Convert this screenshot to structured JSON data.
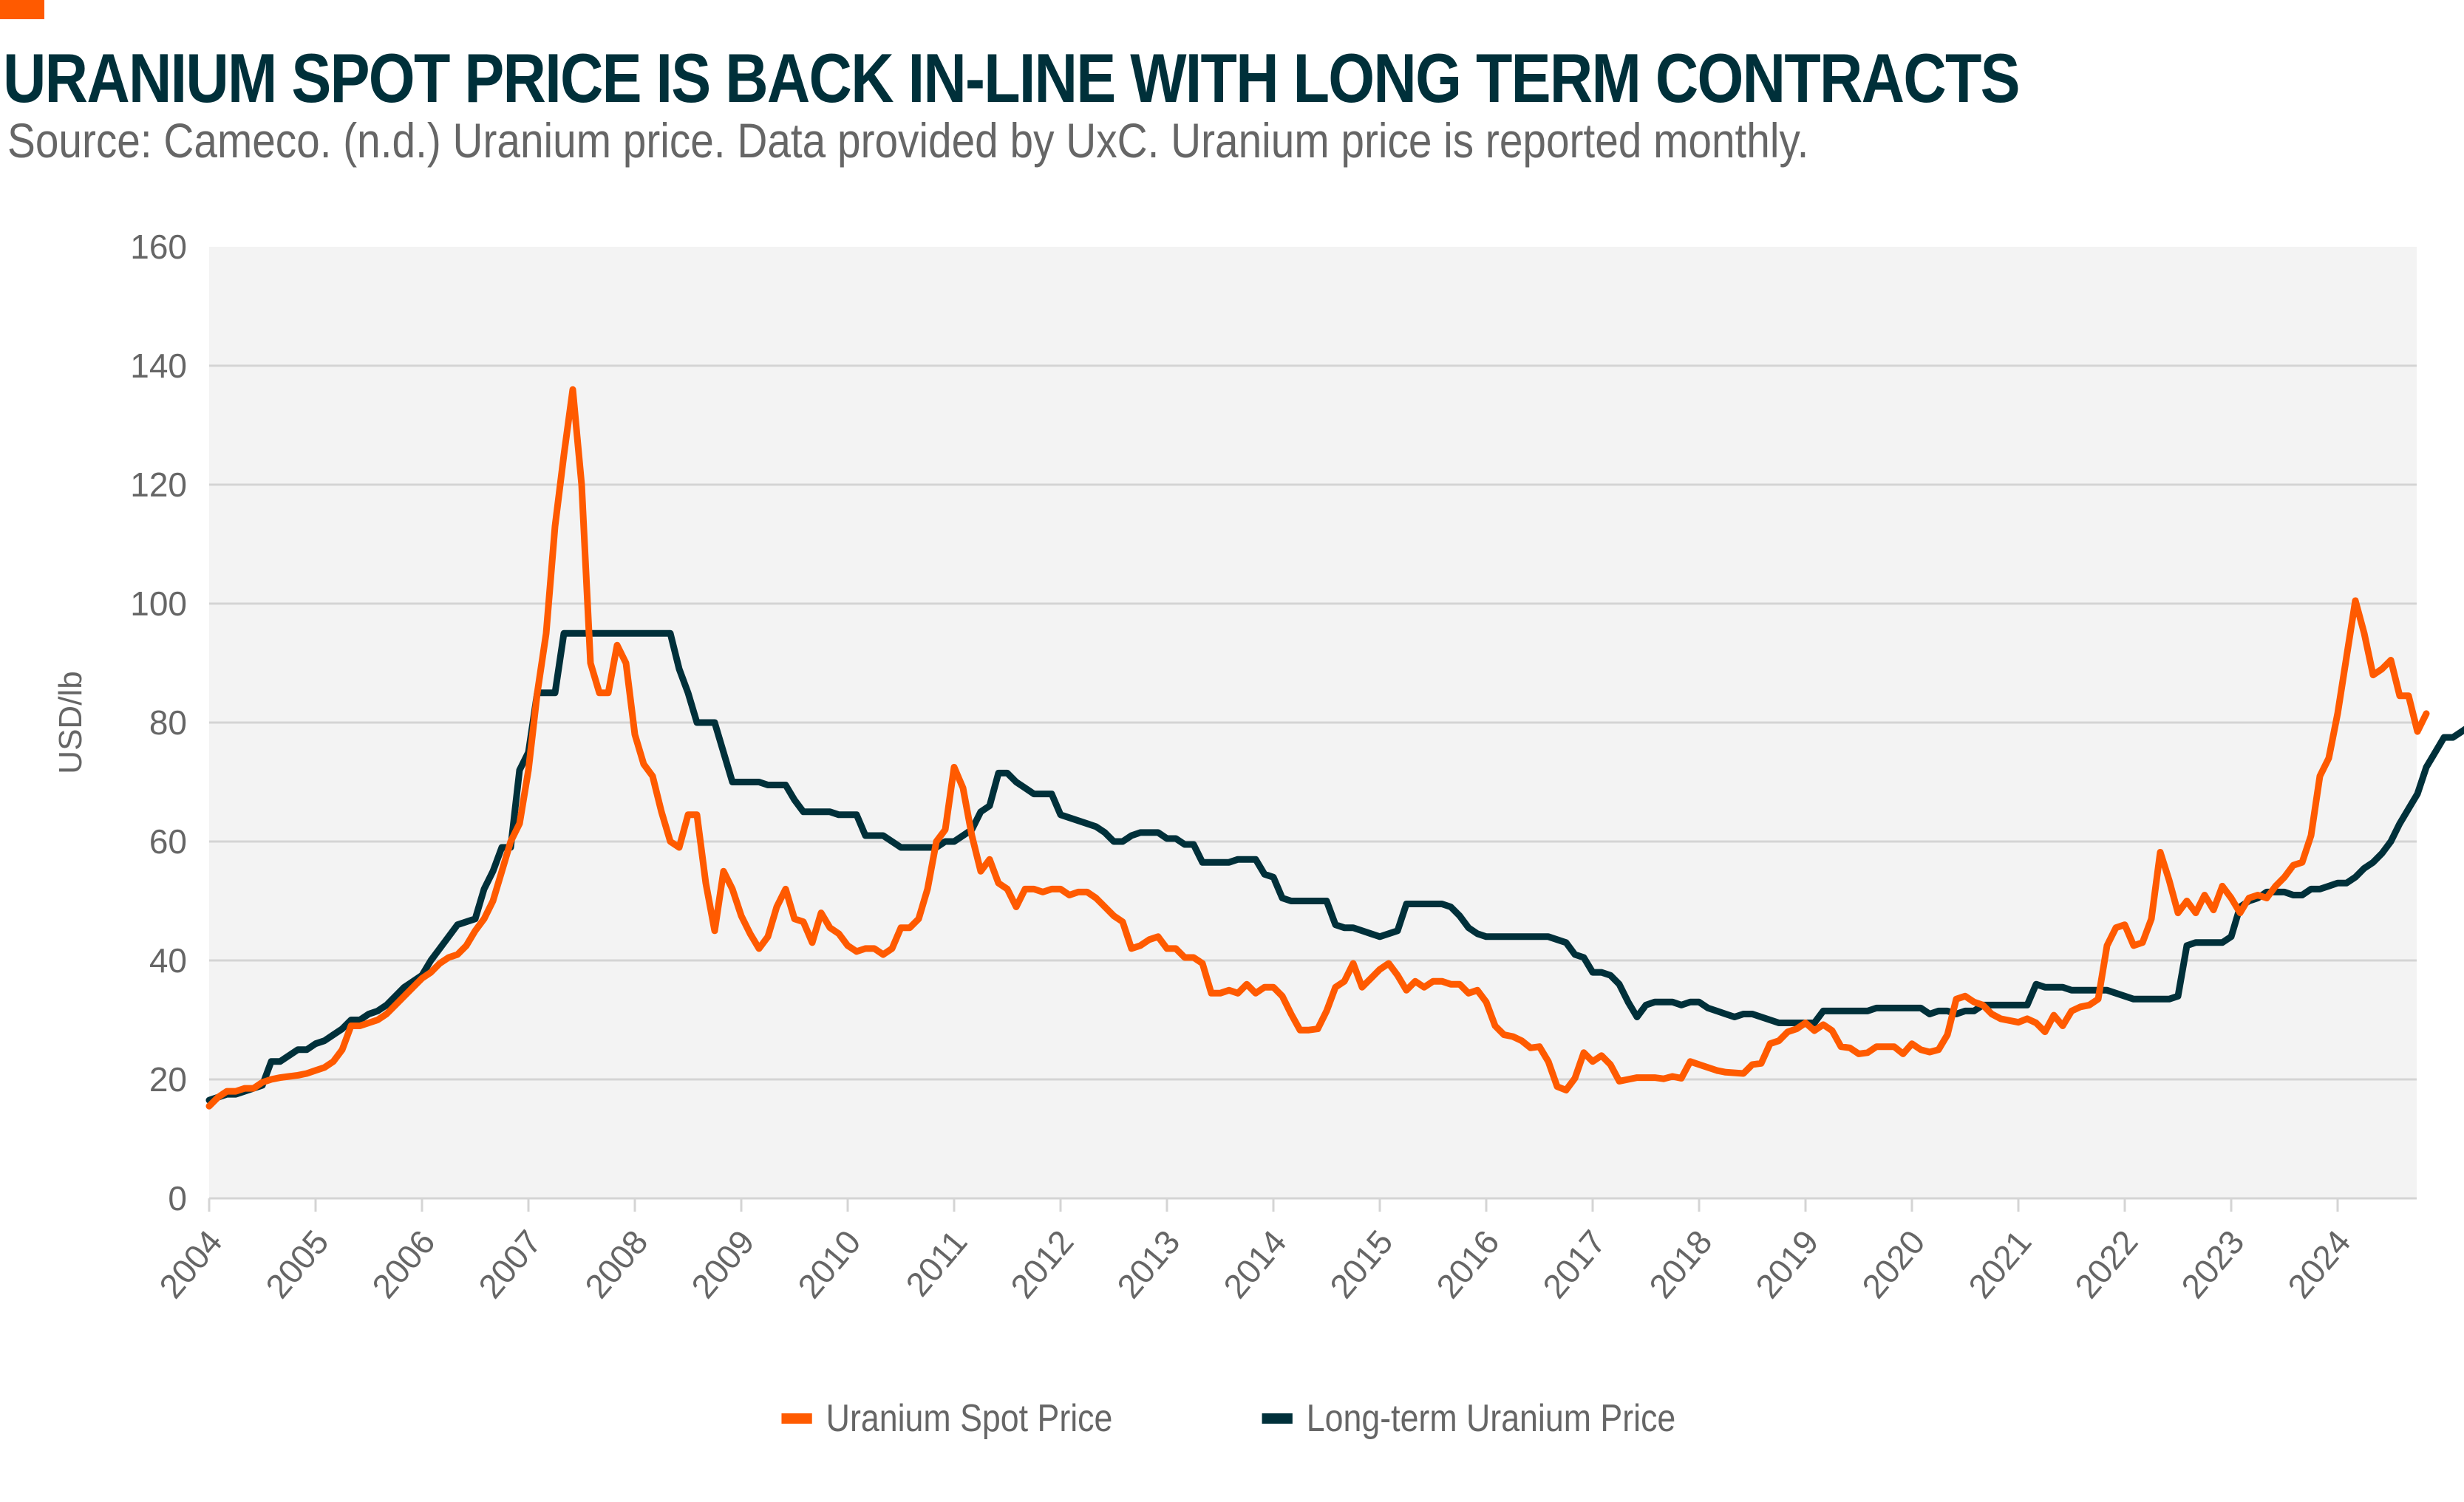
{
  "header": {
    "title": "URANIUM SPOT PRICE IS BACK IN-LINE WITH LONG TERM CONTRACTS",
    "subtitle": "Source: Cameco. (n.d.) Uranium price. Data provided by UxC. Uranium price is reported monthly.",
    "accent_color": "#ff5a00"
  },
  "chart_data": {
    "type": "line",
    "title": "URANIUM SPOT PRICE IS BACK IN-LINE WITH LONG TERM CONTRACTS",
    "xlabel": "",
    "ylabel": "USD/lb",
    "ylim": [
      0,
      160
    ],
    "yticks": [
      "0",
      "20",
      "40",
      "60",
      "80",
      "100",
      "120",
      "140",
      "160"
    ],
    "xticks": [
      "2004",
      "2005",
      "2006",
      "2007",
      "2008",
      "2009",
      "2010",
      "2011",
      "2012",
      "2013",
      "2014",
      "2015",
      "2016",
      "2017",
      "2018",
      "2019",
      "2020",
      "2021",
      "2022",
      "2023",
      "2024"
    ],
    "x_start": "2004-01",
    "x_frequency": "monthly",
    "grid": true,
    "legend_position": "bottom-center",
    "series": [
      {
        "name": "Uranium Spot Price",
        "color": "#ff5a00",
        "values": [
          15.5,
          17,
          18,
          18,
          18.5,
          18.5,
          19.5,
          20,
          20.3,
          20.5,
          20.7,
          21,
          21.5,
          22,
          23,
          25,
          29,
          29,
          29.5,
          30,
          31,
          32.5,
          34,
          35.5,
          37,
          38,
          39.5,
          40.5,
          41,
          42.5,
          45,
          47,
          50,
          55,
          60,
          63,
          72,
          85,
          95,
          113,
          125,
          136,
          120,
          90,
          85,
          85,
          93,
          90,
          78,
          73,
          71,
          65,
          60,
          59,
          64.5,
          64.5,
          53,
          45,
          55,
          52,
          47.5,
          44.5,
          42,
          44,
          49,
          52,
          47,
          46.5,
          43,
          48,
          45.5,
          44.5,
          42.5,
          41.5,
          42,
          42,
          41,
          42,
          45.5,
          45.5,
          47,
          52,
          60,
          62,
          72.5,
          69,
          61,
          55,
          57,
          53,
          52,
          49,
          52,
          52,
          51.5,
          52,
          52,
          51,
          51.5,
          51.5,
          50.5,
          49,
          47.5,
          46.5,
          42,
          42.5,
          43.5,
          44,
          42,
          42,
          40.5,
          40.5,
          39.5,
          34.5,
          34.5,
          35,
          34.5,
          36,
          34.5,
          35.5,
          35.5,
          34,
          31,
          28.3,
          28.3,
          28.5,
          31.5,
          35.5,
          36.5,
          39.5,
          35.5,
          37,
          38.5,
          39.5,
          37.5,
          35,
          36.5,
          35.5,
          36.5,
          36.5,
          36,
          36,
          34.5,
          35,
          33,
          29,
          27.5,
          27.2,
          26.5,
          25.3,
          25.5,
          23,
          18.8,
          18.2,
          20.2,
          24.5,
          23,
          24,
          22.5,
          19.7,
          20,
          20.3,
          20.3,
          20.3,
          20.1,
          20.5,
          20.2,
          23,
          22.5,
          22,
          21.5,
          21.2,
          21.1,
          21,
          22.5,
          22.7,
          26,
          26.5,
          28,
          28.5,
          29.5,
          28.2,
          29.2,
          28.2,
          25.5,
          25.3,
          24.3,
          24.5,
          25.5,
          25.5,
          25.5,
          24.3,
          26,
          25,
          24.6,
          25,
          27.5,
          33.5,
          34,
          33,
          32.5,
          31,
          30.2,
          29.9,
          29.6,
          30.2,
          29.5,
          28,
          30.8,
          29,
          31.5,
          32.2,
          32.5,
          33.5,
          42.5,
          45.5,
          46,
          42.5,
          43,
          47,
          58.2,
          53.5,
          48,
          50,
          48,
          51,
          48.5,
          52.5,
          50.5,
          48,
          50.5,
          51,
          50.5,
          52.5,
          54,
          56,
          56.5,
          61,
          71,
          74,
          81.5,
          91,
          100.5,
          95,
          88,
          89,
          90.5,
          84.5,
          84.5,
          78.5,
          81.5
        ]
      },
      {
        "name": "Long-term Uranium Price",
        "color": "#00303a",
        "values": [
          16.5,
          17,
          17.5,
          17.5,
          18,
          18.5,
          19,
          23,
          23,
          24,
          25,
          25,
          26,
          26.5,
          27.5,
          28.5,
          30,
          30,
          31,
          31.5,
          32.5,
          34,
          35.5,
          36.5,
          37.5,
          40,
          42,
          44,
          46,
          46.5,
          47,
          52,
          55,
          59,
          59,
          72,
          75,
          85,
          85,
          85,
          95,
          95,
          95,
          95,
          95,
          95,
          95,
          95,
          95,
          95,
          95,
          95,
          95,
          89,
          85,
          80,
          80,
          80,
          75,
          70,
          70,
          70,
          70,
          69.5,
          69.5,
          69.5,
          67,
          65,
          65,
          65,
          65,
          64.5,
          64.5,
          64.5,
          61,
          61,
          61,
          60,
          59,
          59,
          59,
          59,
          59,
          60,
          60,
          61,
          62,
          65,
          66,
          71.5,
          71.5,
          70,
          69,
          68,
          68,
          68,
          64.5,
          64,
          63.5,
          63,
          62.5,
          61.5,
          60,
          60,
          61,
          61.5,
          61.5,
          61.5,
          60.5,
          60.5,
          59.5,
          59.5,
          56.5,
          56.5,
          56.5,
          56.5,
          57,
          57,
          57,
          54.5,
          54,
          50.5,
          50,
          50,
          50,
          50,
          50,
          46,
          45.5,
          45.5,
          45,
          44.5,
          44,
          44.5,
          45,
          49.5,
          49.5,
          49.5,
          49.5,
          49.5,
          49,
          47.5,
          45.5,
          44.5,
          44,
          44,
          44,
          44,
          44,
          44,
          44,
          44,
          43.5,
          43,
          41,
          40.5,
          38,
          38,
          37.5,
          36,
          33,
          30.5,
          32.5,
          33,
          33,
          33,
          32.5,
          33,
          33,
          32,
          31.5,
          31,
          30.5,
          31,
          31,
          30.5,
          30,
          29.5,
          29.5,
          29.5,
          29.5,
          29.5,
          31.5,
          31.5,
          31.5,
          31.5,
          31.5,
          31.5,
          32,
          32,
          32,
          32,
          32,
          32,
          31,
          31.5,
          31.5,
          31,
          31.5,
          31.5,
          32.5,
          32.5,
          32.5,
          32.5,
          32.5,
          32.5,
          36,
          35.5,
          35.5,
          35.5,
          35,
          35,
          35,
          35,
          35,
          34.5,
          34,
          33.5,
          33.5,
          33.5,
          33.5,
          33.5,
          34,
          42.5,
          43,
          43,
          43,
          43,
          44,
          49,
          50,
          50.5,
          51.5,
          51.5,
          51.5,
          51,
          51,
          52,
          52,
          52.5,
          53,
          53,
          54,
          55.5,
          56.5,
          58,
          60,
          63,
          65.5,
          68,
          72.5,
          75,
          77.5,
          77.5,
          78.5,
          79.5,
          80.5,
          81,
          81.5
        ]
      }
    ]
  },
  "legend": {
    "items": [
      {
        "label": "Uranium Spot Price",
        "color": "#ff5a00"
      },
      {
        "label": "Long-term Uranium Price",
        "color": "#00303a"
      }
    ]
  }
}
